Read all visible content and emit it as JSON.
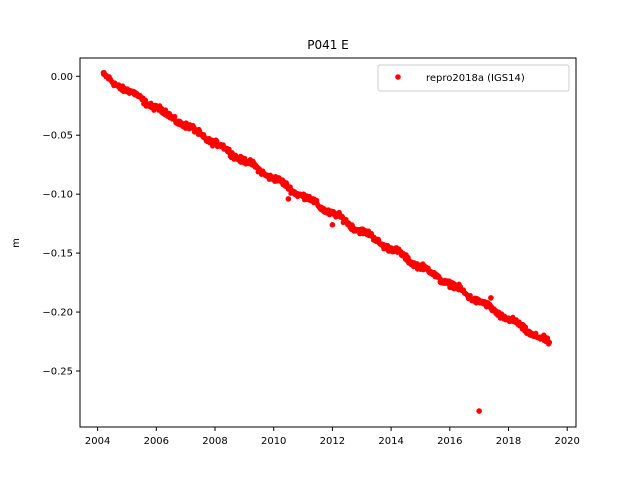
{
  "chart_data": {
    "type": "scatter",
    "title": "P041 E",
    "xlabel": "",
    "ylabel": "m",
    "xlim": [
      2003.4,
      2020.3
    ],
    "ylim": [
      -0.2975,
      0.0155
    ],
    "xticks": [
      2004,
      2006,
      2008,
      2010,
      2012,
      2014,
      2016,
      2018,
      2020
    ],
    "xtick_labels": [
      "2004",
      "2006",
      "2008",
      "2010",
      "2012",
      "2014",
      "2016",
      "2018",
      "2020"
    ],
    "yticks": [
      0.0,
      -0.05,
      -0.1,
      -0.15,
      -0.2,
      -0.25
    ],
    "ytick_labels": [
      "0.00",
      "−0.05",
      "−0.10",
      "−0.15",
      "−0.20",
      "−0.25"
    ],
    "grid": false,
    "legend_position": "top-right",
    "series": [
      {
        "name": "repro2018a (IGS14)",
        "color": "#ff0000",
        "marker": "circle",
        "trend": {
          "x_start": 2004.2,
          "x_end": 2019.4,
          "y_start": 0.0,
          "y_end": -0.227,
          "scatter": 0.0025
        },
        "outliers": [
          {
            "x": 2017.0,
            "y": -0.284
          },
          {
            "x": 2017.4,
            "y": -0.188
          },
          {
            "x": 2010.5,
            "y": -0.104
          },
          {
            "x": 2012.0,
            "y": -0.126
          },
          {
            "x": 2004.2,
            "y": 0.003
          }
        ]
      }
    ]
  }
}
